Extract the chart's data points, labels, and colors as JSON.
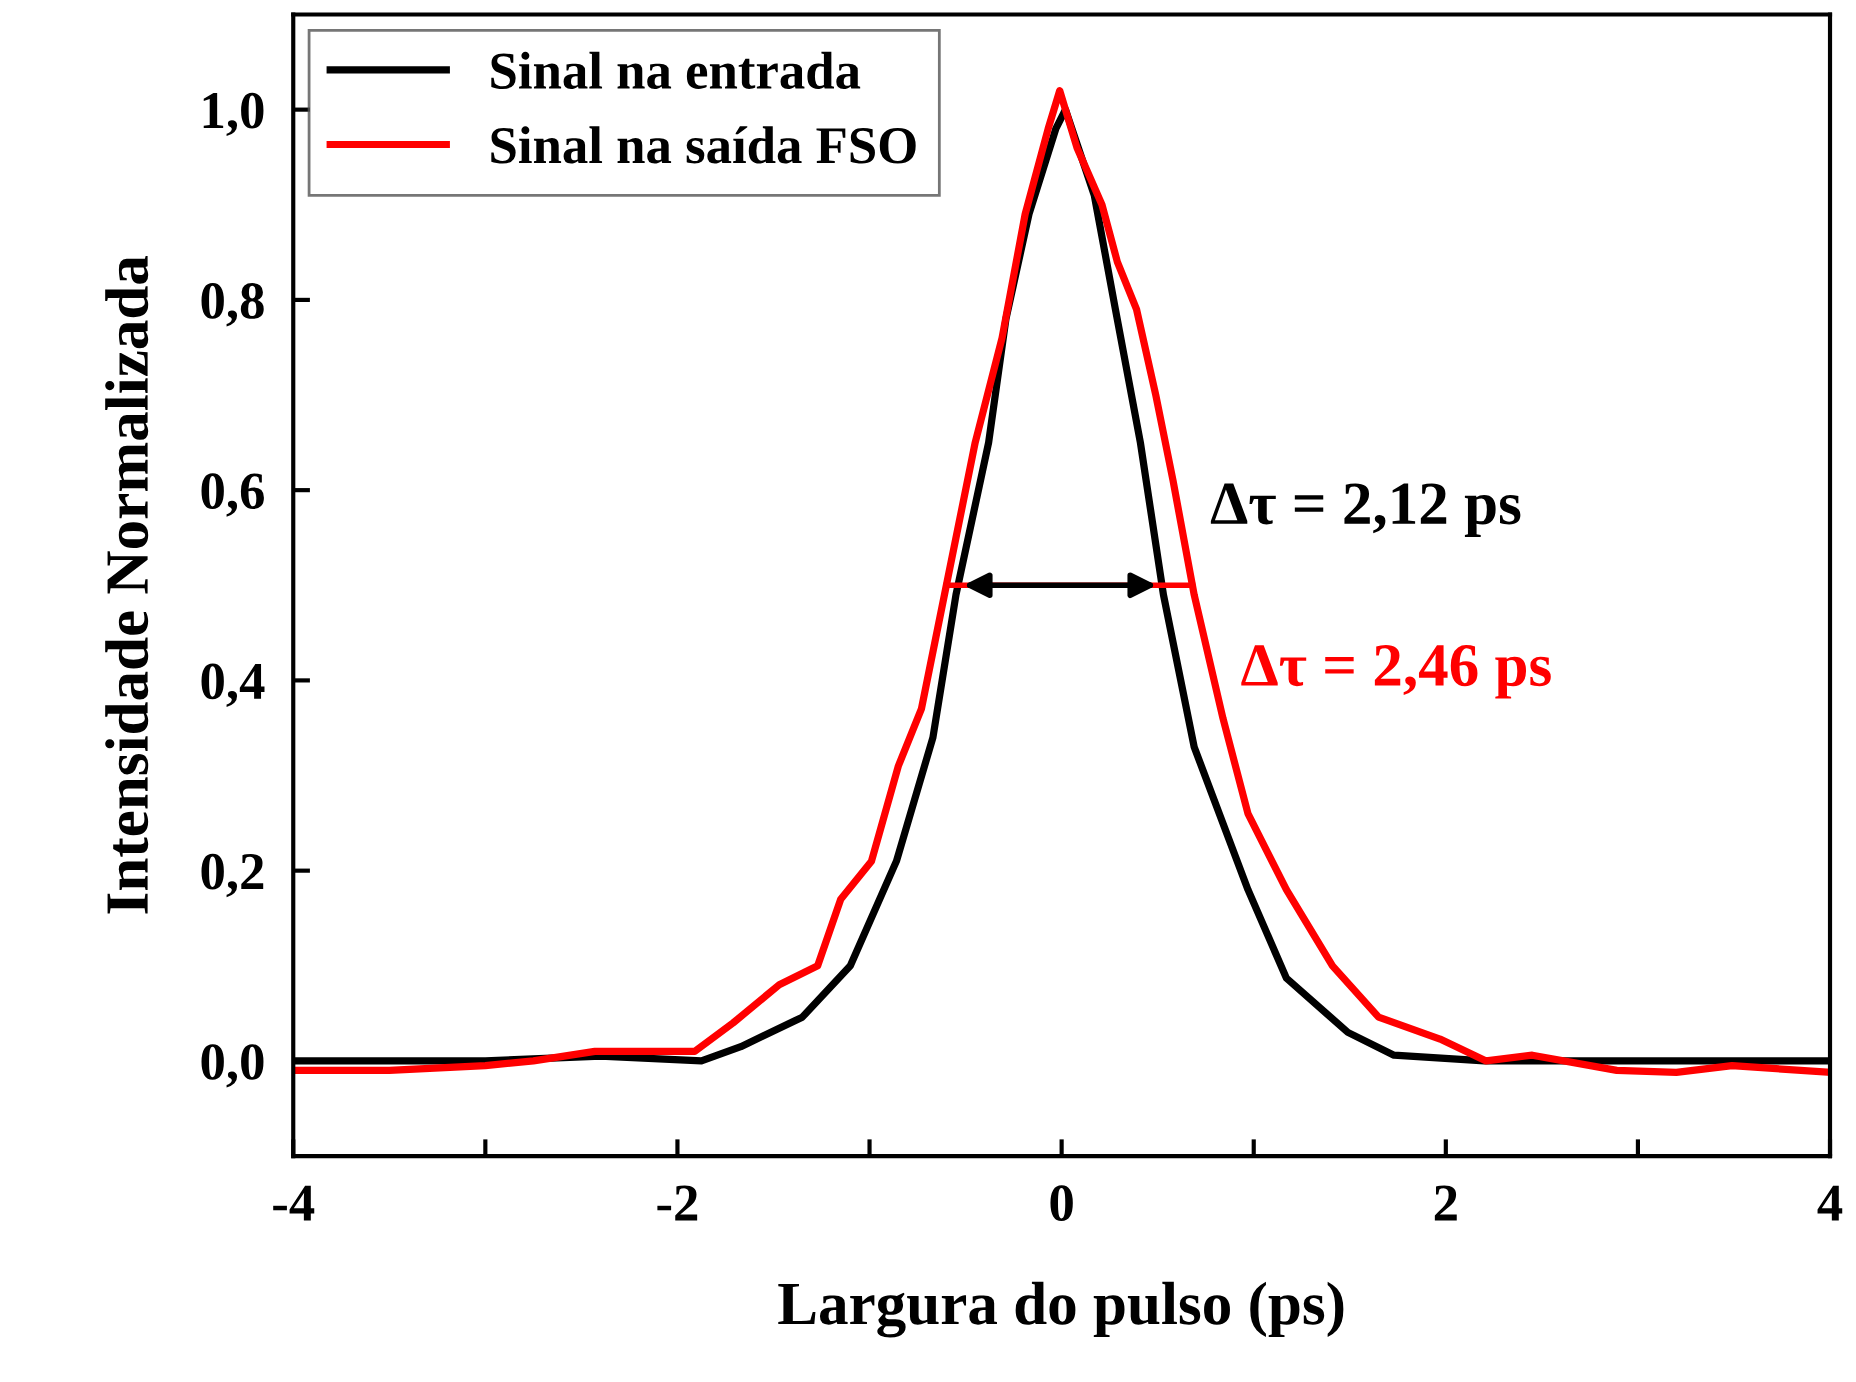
{
  "chart_data": {
    "type": "line",
    "xlabel": "Largura do pulso (ps)",
    "ylabel": "Intensidade Normalizada",
    "xlim": [
      -4,
      4
    ],
    "xticks": [
      -4,
      {
        "value": -3,
        "label": null
      },
      -2,
      {
        "value": -1,
        "label": null
      },
      0,
      {
        "value": 1,
        "label": null
      },
      2,
      {
        "value": 3,
        "label": null
      },
      4
    ],
    "ylim": [
      -0.1,
      1.1
    ],
    "yticks": [
      {
        "value": 0,
        "label": "0,0"
      },
      {
        "value": 0.2,
        "label": "0,2"
      },
      {
        "value": 0.4,
        "label": "0,4"
      },
      {
        "value": 0.6,
        "label": "0,6"
      },
      {
        "value": 0.8,
        "label": "0,8"
      },
      {
        "value": 1.0,
        "label": "1,0"
      }
    ],
    "grid": false,
    "legend": "top left",
    "marker": "none",
    "line_style": "solid",
    "series": [
      {
        "name": "Sinal na entrada",
        "color": "#000000",
        "x": [
          -4,
          -3,
          -2.4,
          -1.875,
          -1.67,
          -1.35,
          -1.1,
          -0.86,
          -0.67,
          -0.55,
          -0.38,
          -0.29,
          -0.17,
          -0.03,
          0.02,
          0.17,
          0.28,
          0.41,
          0.53,
          0.69,
          0.97,
          1.17,
          1.49,
          1.73,
          2.2,
          3,
          4
        ],
        "values": [
          0.0,
          0.0,
          0.005,
          0.0,
          0.015,
          0.046,
          0.1,
          0.21,
          0.34,
          0.49,
          0.65,
          0.78,
          0.89,
          0.98,
          1.0,
          0.91,
          0.79,
          0.65,
          0.49,
          0.33,
          0.18,
          0.087,
          0.03,
          0.006,
          0.0,
          0.0,
          0.0
        ]
      },
      {
        "name": "Sinal na saída FSO",
        "color": "#ff0000",
        "x": [
          -4,
          -3.5,
          -3.0,
          -2.75,
          -2.43,
          -1.91,
          -1.71,
          -1.47,
          -1.27,
          -1.15,
          -0.99,
          -0.85,
          -0.73,
          -0.61,
          -0.45,
          -0.31,
          -0.19,
          -0.07,
          -0.01,
          0.08,
          0.21,
          0.29,
          0.39,
          0.49,
          0.58,
          0.69,
          0.84,
          0.97,
          1.17,
          1.41,
          1.65,
          1.97,
          2.21,
          2.45,
          2.89,
          3.2,
          3.49,
          4.0
        ],
        "values": [
          -0.01,
          -0.01,
          -0.005,
          0.0,
          0.01,
          0.01,
          0.04,
          0.08,
          0.1,
          0.17,
          0.21,
          0.31,
          0.37,
          0.49,
          0.65,
          0.76,
          0.89,
          0.98,
          1.02,
          0.96,
          0.9,
          0.84,
          0.79,
          0.7,
          0.61,
          0.49,
          0.36,
          0.26,
          0.18,
          0.1,
          0.046,
          0.023,
          0.0,
          0.006,
          -0.01,
          -0.012,
          -0.005,
          -0.012
        ]
      }
    ],
    "ref_lines": [
      {
        "axis": "y",
        "value": 0.5,
        "label": null
      }
    ],
    "annotations": [
      "Δτ = 2,12 ps",
      "Δτ = 2,46 ps"
    ]
  }
}
